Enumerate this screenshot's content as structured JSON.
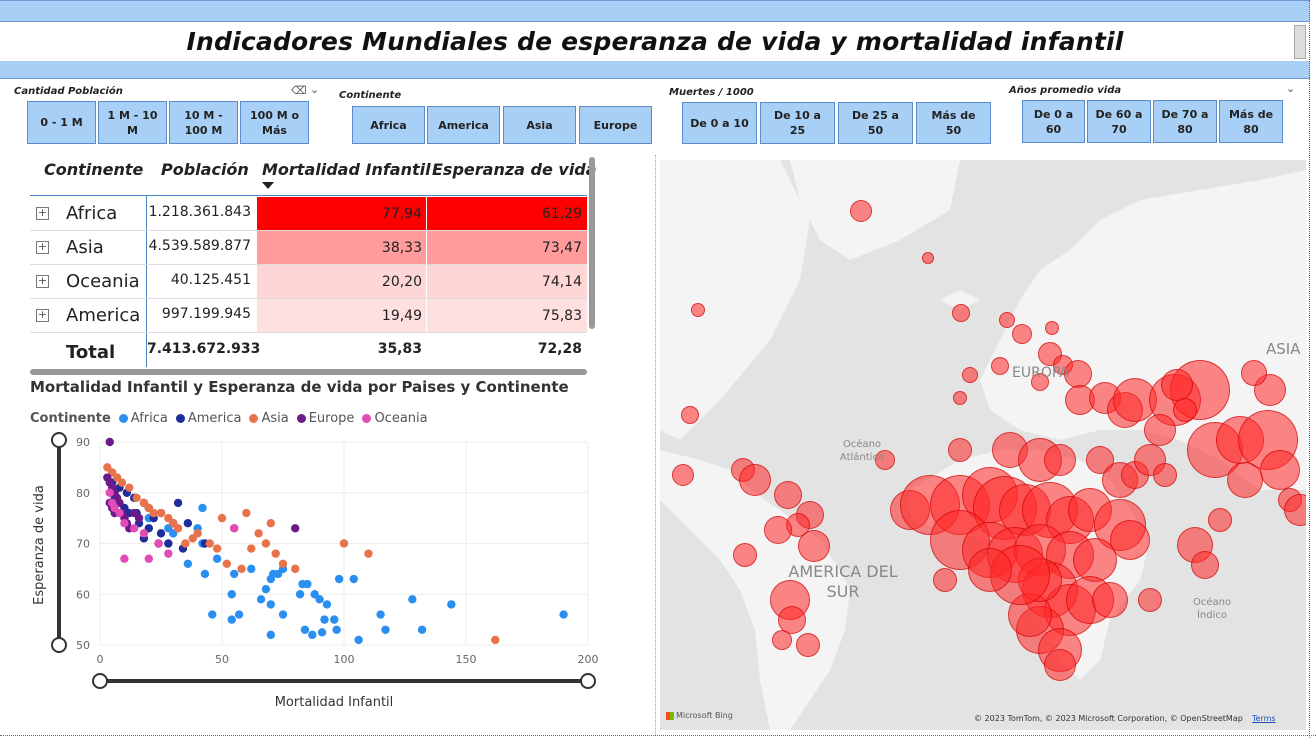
{
  "title": "Indicadores  Mundiales de esperanza de vida y mortalidad infantil",
  "slicers": {
    "poblacion": {
      "title": "Cantidad Población",
      "options": [
        "0 - 1 M",
        "1 M - 10 M",
        "10 M - 100 M",
        "100 M o Más"
      ]
    },
    "continente": {
      "title": "Continente",
      "options": [
        "Africa",
        "America",
        "Asia",
        "Europe"
      ]
    },
    "muertes": {
      "title": "Muertes / 1000",
      "options": [
        "De 0 a 10",
        "De 10 a 25",
        "De 25 a 50",
        "Más de 50"
      ]
    },
    "anios": {
      "title": "Años promedio vida",
      "options": [
        "De 0 a 60",
        "De 60 a 70",
        "De 70 a 80",
        "Más de 80"
      ]
    }
  },
  "table": {
    "headers": [
      "Continente",
      "Población",
      "Mortalidad Infantil",
      "Esperanza de vida"
    ],
    "rows": [
      {
        "continent": "Africa",
        "population": "1.218.361.843",
        "mortality": "77,94",
        "life": "61,29"
      },
      {
        "continent": "Asia",
        "population": "4.539.589.877",
        "mortality": "38,33",
        "life": "73,47"
      },
      {
        "continent": "Oceania",
        "population": "40.125.451",
        "mortality": "20,20",
        "life": "74,14"
      },
      {
        "continent": "America",
        "population": "997.199.945",
        "mortality": "19,49",
        "life": "75,83"
      }
    ],
    "total": {
      "label": "Total",
      "population": "7.413.672.933",
      "mortality": "35,83",
      "life": "72,28"
    },
    "colors": {
      "strong": "#ff0000",
      "mid": "#ff9b9b",
      "light": "#ffd6d6",
      "lightest": "#ffe0e0"
    }
  },
  "scatter": {
    "title": "Mortalidad Infantil y Esperanza de vida por Paises y Continente",
    "legend_title": "Continente",
    "xlabel": "Mortalidad Infantil",
    "ylabel": "Esperanza de vida"
  },
  "chart_data": {
    "type": "scatter",
    "xlim": [
      0,
      200
    ],
    "ylim": [
      50,
      90
    ],
    "xticks": [
      "0",
      "50",
      "100",
      "150",
      "200"
    ],
    "yticks": [
      "50",
      "60",
      "70",
      "80",
      "90"
    ],
    "series": [
      {
        "name": "Africa",
        "color": "#2a8ff0",
        "points": [
          [
            190,
            56
          ],
          [
            144,
            58
          ],
          [
            128,
            59
          ],
          [
            115,
            56
          ],
          [
            117,
            53
          ],
          [
            132,
            53
          ],
          [
            106,
            51
          ],
          [
            97,
            53
          ],
          [
            91,
            52.5
          ],
          [
            84,
            53
          ],
          [
            87,
            52
          ],
          [
            70,
            52
          ],
          [
            75,
            56
          ],
          [
            96,
            55
          ],
          [
            92,
            55
          ],
          [
            93,
            58
          ],
          [
            90,
            59
          ],
          [
            88,
            60
          ],
          [
            82,
            60
          ],
          [
            85,
            62
          ],
          [
            98,
            63
          ],
          [
            104,
            63
          ],
          [
            83,
            62
          ],
          [
            70,
            58
          ],
          [
            68,
            61
          ],
          [
            57,
            56
          ],
          [
            54,
            55
          ],
          [
            46,
            56
          ],
          [
            54,
            60
          ],
          [
            66,
            59
          ],
          [
            70,
            63
          ],
          [
            71,
            64
          ],
          [
            62,
            65
          ],
          [
            55,
            64
          ],
          [
            43,
            64
          ],
          [
            48,
            67
          ],
          [
            36,
            66
          ],
          [
            42,
            70
          ],
          [
            40,
            73
          ],
          [
            30,
            72
          ],
          [
            42,
            77
          ],
          [
            28,
            73
          ],
          [
            20,
            75
          ],
          [
            75,
            65
          ],
          [
            73,
            64
          ]
        ]
      },
      {
        "name": "America",
        "color": "#1f2d9b",
        "points": [
          [
            5,
            82
          ],
          [
            8,
            81
          ],
          [
            11,
            80
          ],
          [
            14,
            79
          ],
          [
            6,
            79
          ],
          [
            10,
            77
          ],
          [
            15,
            76
          ],
          [
            18,
            78
          ],
          [
            20,
            77
          ],
          [
            12,
            76
          ],
          [
            22,
            75
          ],
          [
            25,
            76
          ],
          [
            16,
            74
          ],
          [
            20,
            73
          ],
          [
            30,
            74
          ],
          [
            32,
            78
          ],
          [
            25,
            72
          ],
          [
            28,
            70
          ],
          [
            34,
            69
          ],
          [
            43,
            70
          ],
          [
            24,
            70
          ],
          [
            18,
            71
          ],
          [
            36,
            74
          ]
        ]
      },
      {
        "name": "Asia",
        "color": "#e8734a",
        "points": [
          [
            3,
            85
          ],
          [
            5,
            84
          ],
          [
            7,
            83
          ],
          [
            9,
            82
          ],
          [
            12,
            81
          ],
          [
            15,
            79
          ],
          [
            18,
            78
          ],
          [
            20,
            77
          ],
          [
            22,
            76
          ],
          [
            25,
            76
          ],
          [
            28,
            75
          ],
          [
            30,
            74
          ],
          [
            32,
            73
          ],
          [
            35,
            70
          ],
          [
            38,
            71
          ],
          [
            40,
            72
          ],
          [
            45,
            70
          ],
          [
            50,
            75
          ],
          [
            55,
            73
          ],
          [
            60,
            76
          ],
          [
            65,
            72
          ],
          [
            70,
            74
          ],
          [
            72,
            68
          ],
          [
            75,
            66
          ],
          [
            80,
            65
          ],
          [
            100,
            70
          ],
          [
            110,
            68
          ],
          [
            162,
            51
          ],
          [
            48,
            69
          ],
          [
            52,
            66
          ],
          [
            58,
            65
          ],
          [
            62,
            69
          ],
          [
            68,
            70
          ]
        ]
      },
      {
        "name": "Europe",
        "color": "#6b1a8a",
        "points": [
          [
            4,
            90
          ],
          [
            3,
            83
          ],
          [
            4,
            82
          ],
          [
            5,
            81
          ],
          [
            6,
            80
          ],
          [
            7,
            79
          ],
          [
            8,
            78
          ],
          [
            4,
            78
          ],
          [
            5,
            77
          ],
          [
            6,
            76
          ],
          [
            9,
            76
          ],
          [
            10,
            75
          ],
          [
            11,
            74
          ],
          [
            14,
            76
          ],
          [
            16,
            75
          ],
          [
            12,
            73
          ],
          [
            80,
            73
          ]
        ]
      },
      {
        "name": "Oceania",
        "color": "#e24bb8",
        "points": [
          [
            4,
            80
          ],
          [
            5,
            78
          ],
          [
            6,
            77
          ],
          [
            8,
            76
          ],
          [
            10,
            74
          ],
          [
            14,
            73
          ],
          [
            18,
            72
          ],
          [
            24,
            70
          ],
          [
            28,
            68
          ],
          [
            20,
            67
          ],
          [
            10,
            67
          ],
          [
            55,
            73
          ]
        ]
      }
    ]
  },
  "map": {
    "labels": {
      "europa": "EUROPA",
      "america": "AMERICA DEL SUR",
      "asia": "ASIA",
      "atlantico": "Océano Atlántico",
      "indico": "Océano Índico"
    },
    "attribution": "© 2023 TomTom, © 2023 Microsoft Corporation, © OpenStreetMap",
    "terms": "Terms",
    "logo": "Microsoft Bing"
  }
}
